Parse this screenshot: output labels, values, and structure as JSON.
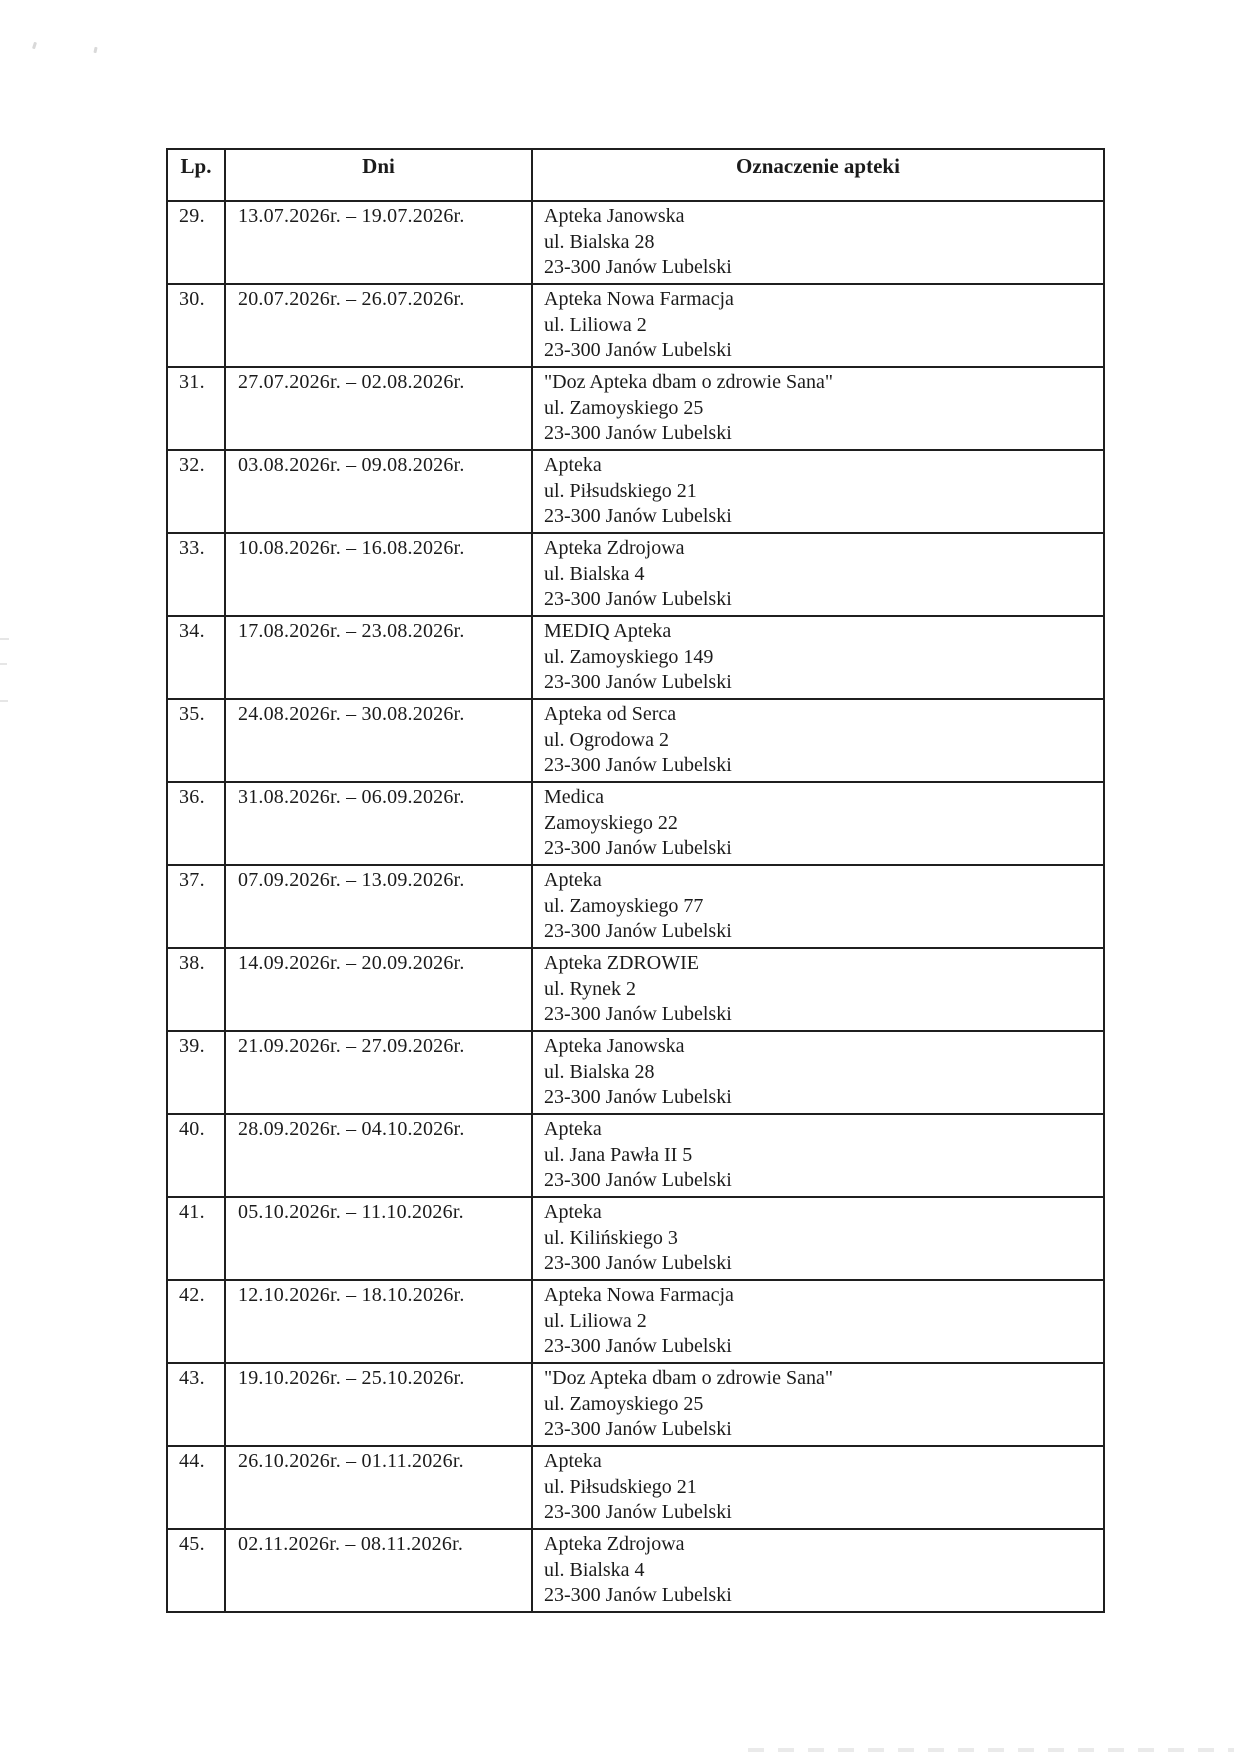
{
  "colors": {
    "background": "#ffffff",
    "ink": "#1b1b1b",
    "table_border": "#1f1f1f"
  },
  "table": {
    "headers": {
      "lp": "Lp.",
      "dni": "Dni",
      "apteka": "Oznaczenie apteki"
    },
    "rows": [
      {
        "lp": "29.",
        "dni": "13.07.2026r. – 19.07.2026r.",
        "apteka": [
          "Apteka Janowska",
          "ul. Bialska 28",
          "23-300 Janów Lubelski"
        ]
      },
      {
        "lp": "30.",
        "dni": "20.07.2026r. – 26.07.2026r.",
        "apteka": [
          "Apteka Nowa Farmacja",
          "ul. Liliowa 2",
          "23-300 Janów Lubelski"
        ]
      },
      {
        "lp": "31.",
        "dni": "27.07.2026r. – 02.08.2026r.",
        "apteka": [
          "\"Doz Apteka dbam o zdrowie Sana\"",
          "ul. Zamoyskiego 25",
          "23-300 Janów Lubelski"
        ]
      },
      {
        "lp": "32.",
        "dni": "03.08.2026r. – 09.08.2026r.",
        "apteka": [
          "Apteka",
          "ul. Piłsudskiego 21",
          "23-300 Janów Lubelski"
        ]
      },
      {
        "lp": "33.",
        "dni": "10.08.2026r. – 16.08.2026r.",
        "apteka": [
          "Apteka Zdrojowa",
          "ul. Bialska 4",
          "23-300 Janów Lubelski"
        ]
      },
      {
        "lp": "34.",
        "dni": "17.08.2026r. – 23.08.2026r.",
        "apteka": [
          "MEDIQ Apteka",
          "ul. Zamoyskiego 149",
          "23-300 Janów Lubelski"
        ]
      },
      {
        "lp": "35.",
        "dni": "24.08.2026r. – 30.08.2026r.",
        "apteka": [
          "Apteka od Serca",
          "ul. Ogrodowa 2",
          "23-300 Janów Lubelski"
        ]
      },
      {
        "lp": "36.",
        "dni": "31.08.2026r. – 06.09.2026r.",
        "apteka": [
          "Medica",
          "Zamoyskiego 22",
          "23-300 Janów Lubelski"
        ]
      },
      {
        "lp": "37.",
        "dni": "07.09.2026r. – 13.09.2026r.",
        "apteka": [
          "Apteka",
          "ul. Zamoyskiego 77",
          "23-300 Janów Lubelski"
        ]
      },
      {
        "lp": "38.",
        "dni": "14.09.2026r. – 20.09.2026r.",
        "apteka": [
          "Apteka ZDROWIE",
          "ul. Rynek 2",
          "23-300 Janów Lubelski"
        ]
      },
      {
        "lp": "39.",
        "dni": "21.09.2026r. – 27.09.2026r.",
        "apteka": [
          "Apteka Janowska",
          "ul. Bialska 28",
          "23-300 Janów Lubelski"
        ]
      },
      {
        "lp": "40.",
        "dni": "28.09.2026r. – 04.10.2026r.",
        "apteka": [
          "Apteka",
          "ul. Jana Pawła II 5",
          "23-300 Janów Lubelski"
        ]
      },
      {
        "lp": "41.",
        "dni": "05.10.2026r. – 11.10.2026r.",
        "apteka": [
          "Apteka",
          "ul. Kilińskiego 3",
          "23-300 Janów Lubelski"
        ]
      },
      {
        "lp": "42.",
        "dni": "12.10.2026r. – 18.10.2026r.",
        "apteka": [
          "Apteka Nowa Farmacja",
          "ul. Liliowa 2",
          "23-300 Janów Lubelski"
        ]
      },
      {
        "lp": "43.",
        "dni": "19.10.2026r. – 25.10.2026r.",
        "apteka": [
          "\"Doz Apteka dbam o zdrowie Sana\"",
          "ul. Zamoyskiego 25",
          "23-300 Janów Lubelski"
        ]
      },
      {
        "lp": "44.",
        "dni": "26.10.2026r. – 01.11.2026r.",
        "apteka": [
          "Apteka",
          "ul. Piłsudskiego 21",
          "23-300 Janów Lubelski"
        ]
      },
      {
        "lp": "45.",
        "dni": "02.11.2026r. – 08.11.2026r.",
        "apteka": [
          "Apteka Zdrojowa",
          "ul. Bialska 4",
          "23-300 Janów Lubelski"
        ]
      }
    ]
  }
}
